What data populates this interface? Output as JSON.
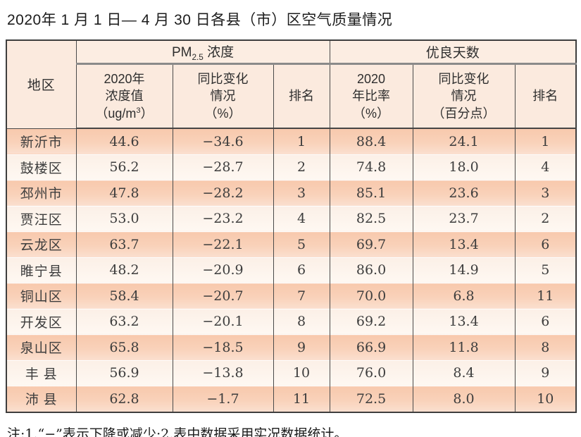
{
  "title": "2020年 1 月 1 日— 4 月 30 日各县（市）区空气质量情况",
  "note": "注:1.“−”表示下降或减少;2.表中数据采用实况数据统计。",
  "colors": {
    "row_dark": "#f8c9ad",
    "row_light": "#fcf0e7",
    "header_bg": "#fbeade",
    "border": "#4a4a4a",
    "thick_rule": "#8a8a8a"
  },
  "table": {
    "header": {
      "region": "地区",
      "pm_group": {
        "prefix": "PM",
        "sub": "2.5",
        "suffix": " 浓度"
      },
      "days_group": "优良天数",
      "pm_value": {
        "line1": "2020年",
        "line2": "浓度值",
        "unit_prefix": "（ug/m",
        "unit_sup": "3",
        "unit_suffix": "）"
      },
      "pm_change": {
        "line1": "同比变化",
        "line2": "情况",
        "line3": "（%）"
      },
      "pm_rank": "排名",
      "days_rate": {
        "line1": "2020",
        "line2": "年比率",
        "line3": "（%）"
      },
      "days_change": {
        "line1": "同比变化",
        "line2": "情况",
        "line3": "（百分点）"
      },
      "days_rank": "排名"
    },
    "rows": [
      {
        "region": "新沂市",
        "pm_value": "44.6",
        "pm_change": "−34.6",
        "pm_rank": "1",
        "days_rate": "88.4",
        "days_change": "24.1",
        "days_rank": "1"
      },
      {
        "region": "鼓楼区",
        "pm_value": "56.2",
        "pm_change": "−28.7",
        "pm_rank": "2",
        "days_rate": "74.8",
        "days_change": "18.0",
        "days_rank": "4"
      },
      {
        "region": "邳州市",
        "pm_value": "47.8",
        "pm_change": "−28.2",
        "pm_rank": "3",
        "days_rate": "85.1",
        "days_change": "23.6",
        "days_rank": "3"
      },
      {
        "region": "贾汪区",
        "pm_value": "53.0",
        "pm_change": "−23.2",
        "pm_rank": "4",
        "days_rate": "82.5",
        "days_change": "23.7",
        "days_rank": "2"
      },
      {
        "region": "云龙区",
        "pm_value": "63.7",
        "pm_change": "−22.1",
        "pm_rank": "5",
        "days_rate": "69.7",
        "days_change": "13.4",
        "days_rank": "6"
      },
      {
        "region": "睢宁县",
        "pm_value": "48.2",
        "pm_change": "−20.9",
        "pm_rank": "6",
        "days_rate": "86.0",
        "days_change": "14.9",
        "days_rank": "5"
      },
      {
        "region": "铜山区",
        "pm_value": "58.4",
        "pm_change": "−20.7",
        "pm_rank": "7",
        "days_rate": "70.0",
        "days_change": "6.8",
        "days_rank": "11"
      },
      {
        "region": "开发区",
        "pm_value": "63.2",
        "pm_change": "−20.1",
        "pm_rank": "8",
        "days_rate": "69.2",
        "days_change": "13.4",
        "days_rank": "6"
      },
      {
        "region": "泉山区",
        "pm_value": "65.8",
        "pm_change": "−18.5",
        "pm_rank": "9",
        "days_rate": "66.9",
        "days_change": "11.8",
        "days_rank": "8"
      },
      {
        "region": "丰 县",
        "pm_value": "56.9",
        "pm_change": "−13.8",
        "pm_rank": "10",
        "days_rate": "76.0",
        "days_change": "8.4",
        "days_rank": "9"
      },
      {
        "region": "沛 县",
        "pm_value": "62.8",
        "pm_change": "−1.7",
        "pm_rank": "11",
        "days_rate": "72.5",
        "days_change": "8.0",
        "days_rank": "10"
      }
    ]
  }
}
